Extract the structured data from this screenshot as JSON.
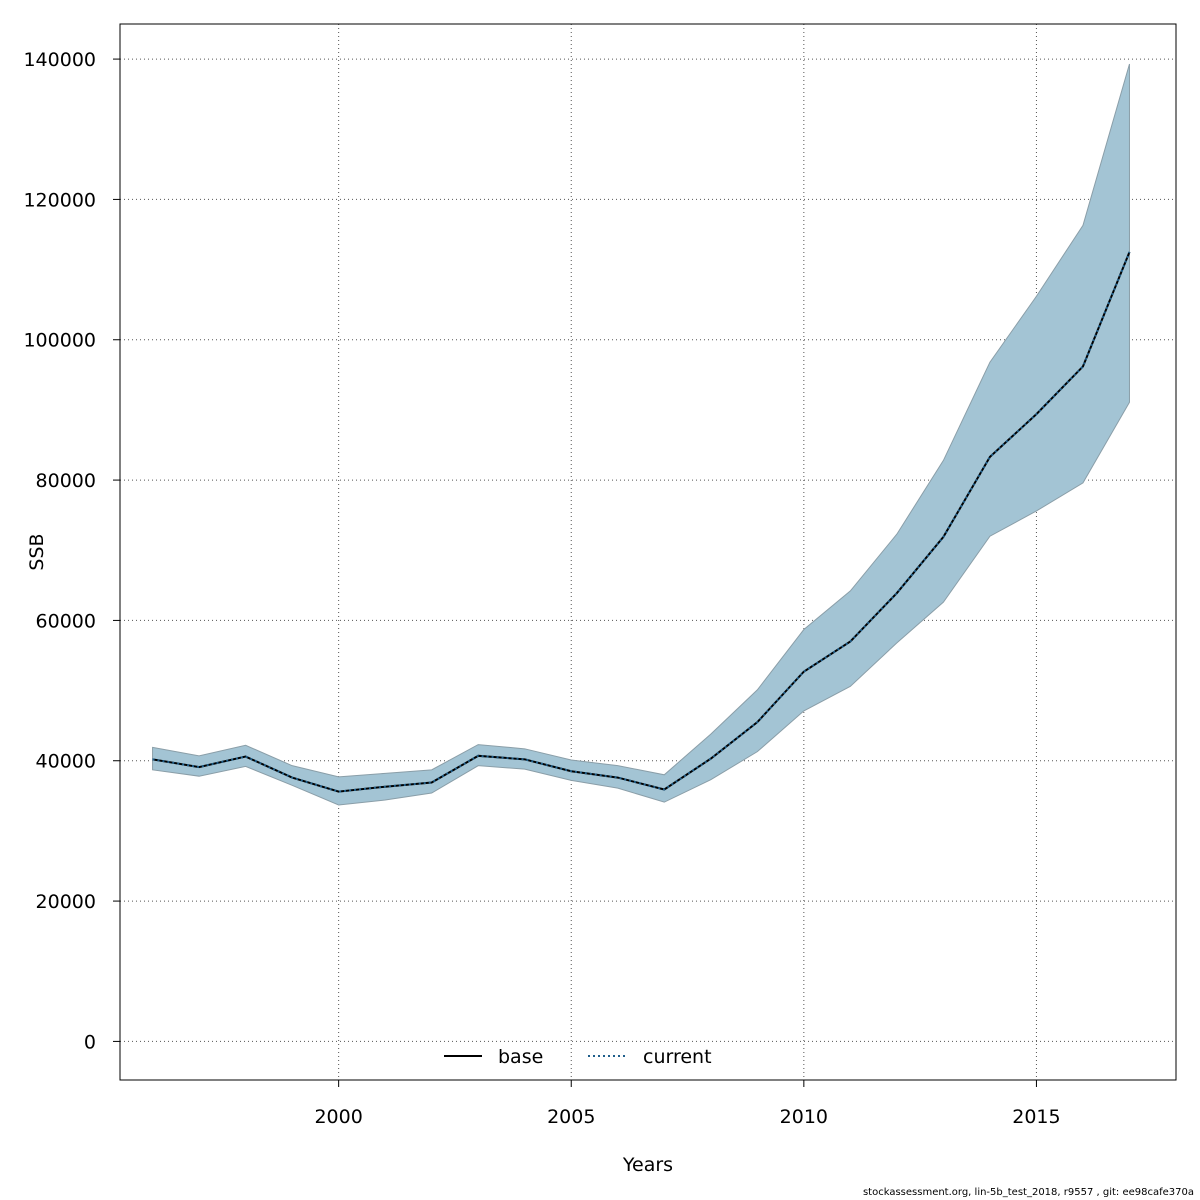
{
  "chart_data": {
    "type": "line",
    "title": "",
    "xlabel": "Years",
    "ylabel": "SSB",
    "xlim": [
      1995.3,
      2018.0
    ],
    "ylim": [
      -5500,
      145000
    ],
    "x_ticks": [
      2000,
      2005,
      2010,
      2015
    ],
    "y_ticks": [
      0,
      20000,
      40000,
      60000,
      80000,
      100000,
      120000,
      140000
    ],
    "grid": true,
    "legend_position": "bottom",
    "x": [
      1996,
      1997,
      1998,
      1999,
      2000,
      2001,
      2002,
      2003,
      2004,
      2005,
      2006,
      2007,
      2008,
      2009,
      2010,
      2011,
      2012,
      2013,
      2014,
      2015,
      2016,
      2017
    ],
    "series": [
      {
        "name": "base",
        "style": "solid",
        "color": "#000000",
        "values": [
          40200,
          39100,
          40600,
          37600,
          35600,
          36300,
          36900,
          40700,
          40200,
          38500,
          37600,
          35900,
          40300,
          45500,
          52700,
          57000,
          63900,
          71900,
          83300,
          89400,
          96200,
          112500
        ]
      },
      {
        "name": "current",
        "style": "dotted",
        "color": "#1f5f8b",
        "values": [
          40200,
          39100,
          40600,
          37600,
          35600,
          36300,
          36900,
          40700,
          40200,
          38500,
          37600,
          35900,
          40300,
          45500,
          52700,
          57000,
          63900,
          71900,
          83300,
          89400,
          96200,
          112500
        ]
      }
    ],
    "band": {
      "color": "#a3c4d4",
      "upper": [
        41900,
        40700,
        42200,
        39300,
        37700,
        38200,
        38700,
        42300,
        41700,
        40100,
        39300,
        38000,
        43800,
        50100,
        58700,
        64200,
        72300,
        82800,
        96800,
        106200,
        116300,
        139300
      ],
      "lower": [
        38700,
        37800,
        39200,
        36500,
        33700,
        34400,
        35400,
        39300,
        38800,
        37200,
        36100,
        34100,
        37300,
        41300,
        47100,
        50600,
        56800,
        62600,
        72000,
        75600,
        79600,
        91100
      ]
    }
  },
  "footer": "stockassessment.org, lin-5b_test_2018, r9557 , git: ee98cafe370a"
}
